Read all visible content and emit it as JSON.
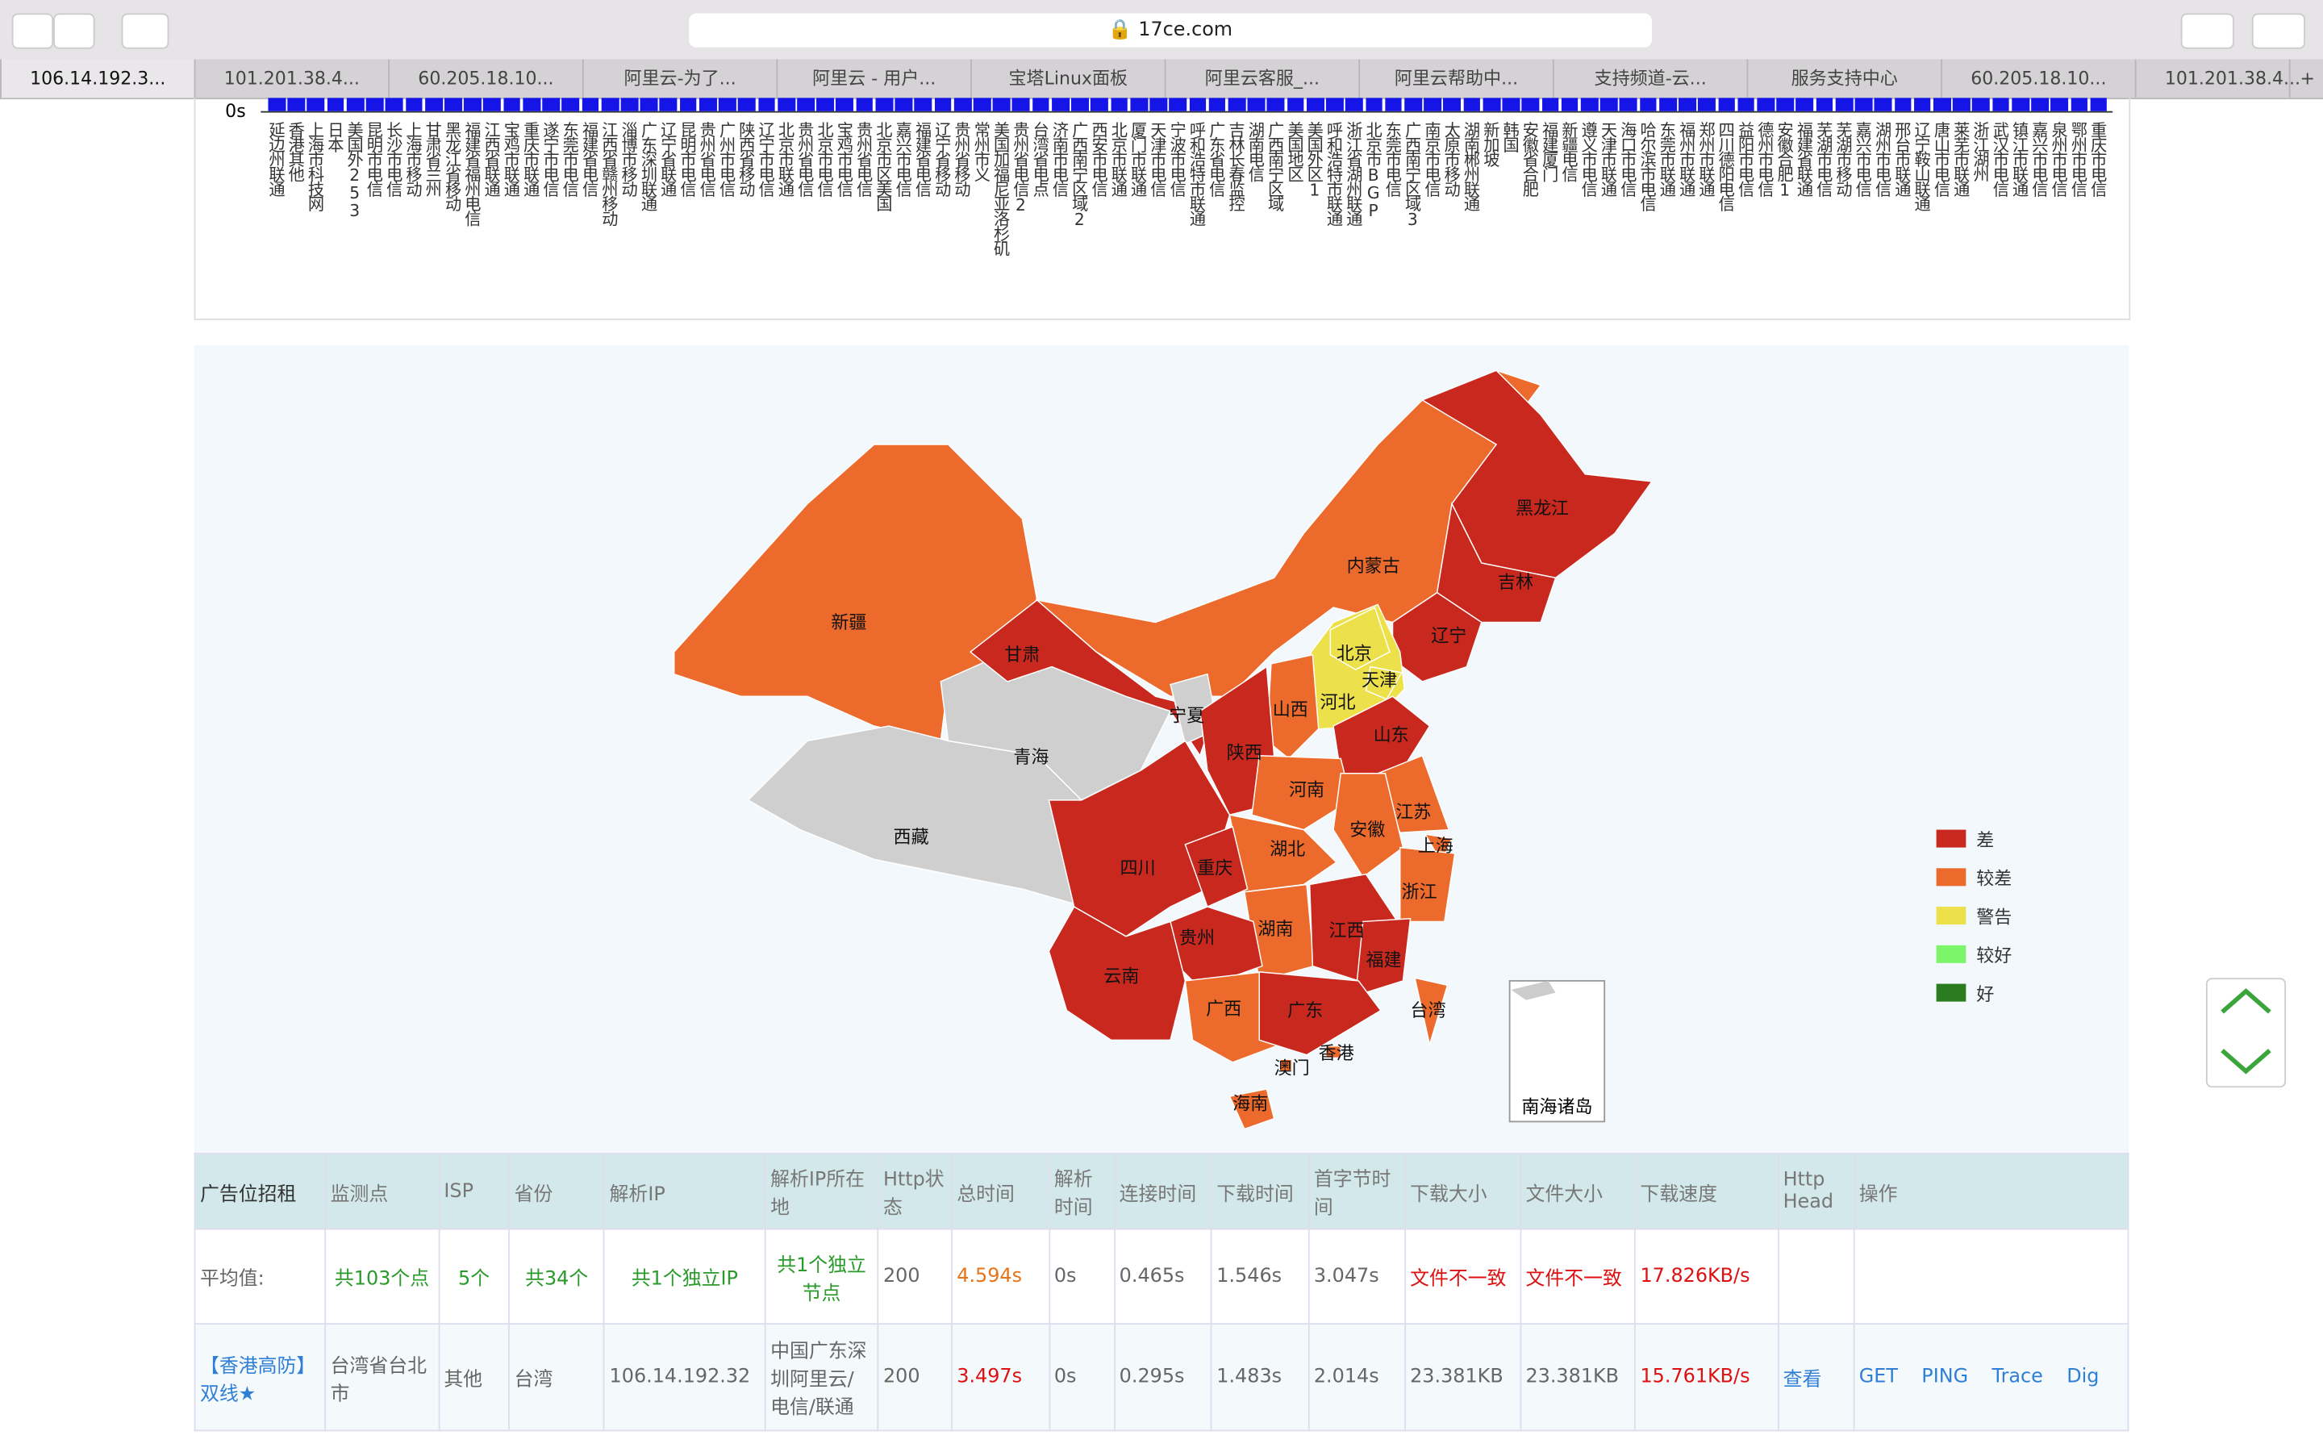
{
  "browser": {
    "url": "17ce.com",
    "tabs": [
      "106.14.192.3...",
      "101.201.38.4...",
      "60.205.18.10...",
      "阿里云-为了...",
      "阿里云 - 用户...",
      "宝塔Linux面板",
      "阿里云客服_...",
      "阿里云帮助中...",
      "支持频道-云...",
      "服务支持中心",
      "60.205.18.10...",
      "101.201.38.4..."
    ]
  },
  "strip": {
    "ytick": "0s",
    "labels": [
      "延边州联通",
      "香港其他",
      "上海市科技网",
      "日本",
      "美国外253",
      "昆明市电信",
      "长沙市电信",
      "上海市移动",
      "甘肃省兰州",
      "黑龙江省移动",
      "福建省福州电信",
      "江西省联通",
      "宝鸡市联通",
      "重庆市联通",
      "遂宁市电信",
      "东莞市电信",
      "福建省电信",
      "江西省赣州移动",
      "淄博市移动",
      "广东深圳联通",
      "辽宁省联通",
      "昆明市电信",
      "贵州省电信",
      "广州市电信",
      "陕西省移动",
      "辽宁市电信",
      "北京市联通",
      "贵州省电信",
      "北京市电信",
      "宝鸡市电信",
      "贵州省电信",
      "北京市区美国",
      "嘉兴市电信",
      "福建省电信",
      "辽宁省移动",
      "贵州省移动",
      "常州市义",
      "美国加福尼亚洛杉矶",
      "贵州省电信2",
      "台湾省电点",
      "济南市电信",
      "广西南宁区域2",
      "西安市电信",
      "北京市联通",
      "厦门市联通",
      "天津市电信",
      "宁波市电信",
      "呼和浩特市联通",
      "广东省电信",
      "吉林长春监控",
      "湖南电信",
      "广西南宁区域",
      "美国地区",
      "美国外区1",
      "呼和浩特市联通",
      "浙江省湖州联通",
      "北京市BGP",
      "东莞市电信",
      "广西南宁区域3",
      "南京市电信",
      "太原市移动",
      "湖南郴州联通",
      "新加坡",
      "韩国",
      "安徽省合肥",
      "福建厦门",
      "新疆电信",
      "遵义市电信",
      "天津市联通",
      "海口市电信",
      "哈尔滨市电信",
      "东莞市联通",
      "福州市联通",
      "郑州市联通",
      "四川德阳电信",
      "益阳市电信",
      "德州市电信",
      "安徽合肥1",
      "福建省联通",
      "芜湖市电信",
      "芜湖市移动",
      "嘉兴市电信",
      "湖州市电信",
      "邢台市联通",
      "辽宁鞍山联通",
      "唐山市电信",
      "莱芜市联通",
      "浙江湖州",
      "武汉市电信",
      "镇江市联通",
      "嘉兴市电信",
      "泉州市电信",
      "鄂州市电信",
      "重庆市电信"
    ]
  },
  "map": {
    "legend": [
      {
        "label": "差",
        "color": "#c8281e"
      },
      {
        "label": "较差",
        "color": "#ec6a2c"
      },
      {
        "label": "警告",
        "color": "#ede14b"
      },
      {
        "label": "较好",
        "color": "#7df56a"
      },
      {
        "label": "好",
        "color": "#2b7c1f"
      }
    ],
    "inset": "南海诸岛",
    "provinces": [
      {
        "name": "新疆",
        "status": "较差"
      },
      {
        "name": "西藏",
        "status": null
      },
      {
        "name": "青海",
        "status": null
      },
      {
        "name": "甘肃",
        "status": "差"
      },
      {
        "name": "内蒙古",
        "status": "较差"
      },
      {
        "name": "黑龙江",
        "status": "差"
      },
      {
        "name": "吉林",
        "status": "差"
      },
      {
        "name": "辽宁",
        "status": "差"
      },
      {
        "name": "河北",
        "status": "警告"
      },
      {
        "name": "北京",
        "status": "警告"
      },
      {
        "name": "天津",
        "status": "警告"
      },
      {
        "name": "山西",
        "status": "较差"
      },
      {
        "name": "宁夏",
        "status": null
      },
      {
        "name": "山东",
        "status": "差"
      },
      {
        "name": "陕西",
        "status": "差"
      },
      {
        "name": "河南",
        "status": "较差"
      },
      {
        "name": "江苏",
        "status": "较差"
      },
      {
        "name": "安徽",
        "status": "较差"
      },
      {
        "name": "上海",
        "status": "较差"
      },
      {
        "name": "湖北",
        "status": "较差"
      },
      {
        "name": "四川",
        "status": "差"
      },
      {
        "name": "重庆",
        "status": "差"
      },
      {
        "name": "浙江",
        "status": "较差"
      },
      {
        "name": "湖南",
        "status": "较差"
      },
      {
        "name": "江西",
        "status": "差"
      },
      {
        "name": "贵州",
        "status": "差"
      },
      {
        "name": "福建",
        "status": "差"
      },
      {
        "name": "云南",
        "status": "差"
      },
      {
        "name": "广西",
        "status": "较差"
      },
      {
        "name": "广东",
        "status": "差"
      },
      {
        "name": "台湾",
        "status": "较差"
      },
      {
        "name": "香港",
        "status": "较差"
      },
      {
        "name": "澳门",
        "status": "较差"
      },
      {
        "name": "海南",
        "status": "较差"
      }
    ]
  },
  "table": {
    "header": [
      "广告位招租",
      "监测点",
      "ISP",
      "省份",
      "解析IP",
      "解析IP所在地",
      "Http状态",
      "总时间",
      "解析时间",
      "连接时间",
      "下载时间",
      "首字节时间",
      "下载大小",
      "文件大小",
      "下载速度",
      "Http Head",
      "操作"
    ],
    "rows": [
      [
        "平均值:",
        "共103个点",
        "5个",
        "共34个",
        "共1个独立IP",
        "共1个独立节点",
        "200",
        "4.594s",
        "0s",
        "0.465s",
        "1.546s",
        "3.047s",
        "文件不一致",
        "文件不一致",
        "17.826KB/s"
      ],
      [
        "【香港高防】双线★",
        "台湾省台北市",
        "其他",
        "台湾",
        "106.14.192.32",
        "中国广东深圳阿里云/电信/联通",
        "200",
        "3.497s",
        "0s",
        "0.295s",
        "1.483s",
        "2.014s",
        "23.381KB",
        "23.381KB",
        "15.761KB/s",
        "查看",
        [
          "GET",
          "PING",
          "Trace",
          "Dig"
        ]
      ]
    ]
  }
}
